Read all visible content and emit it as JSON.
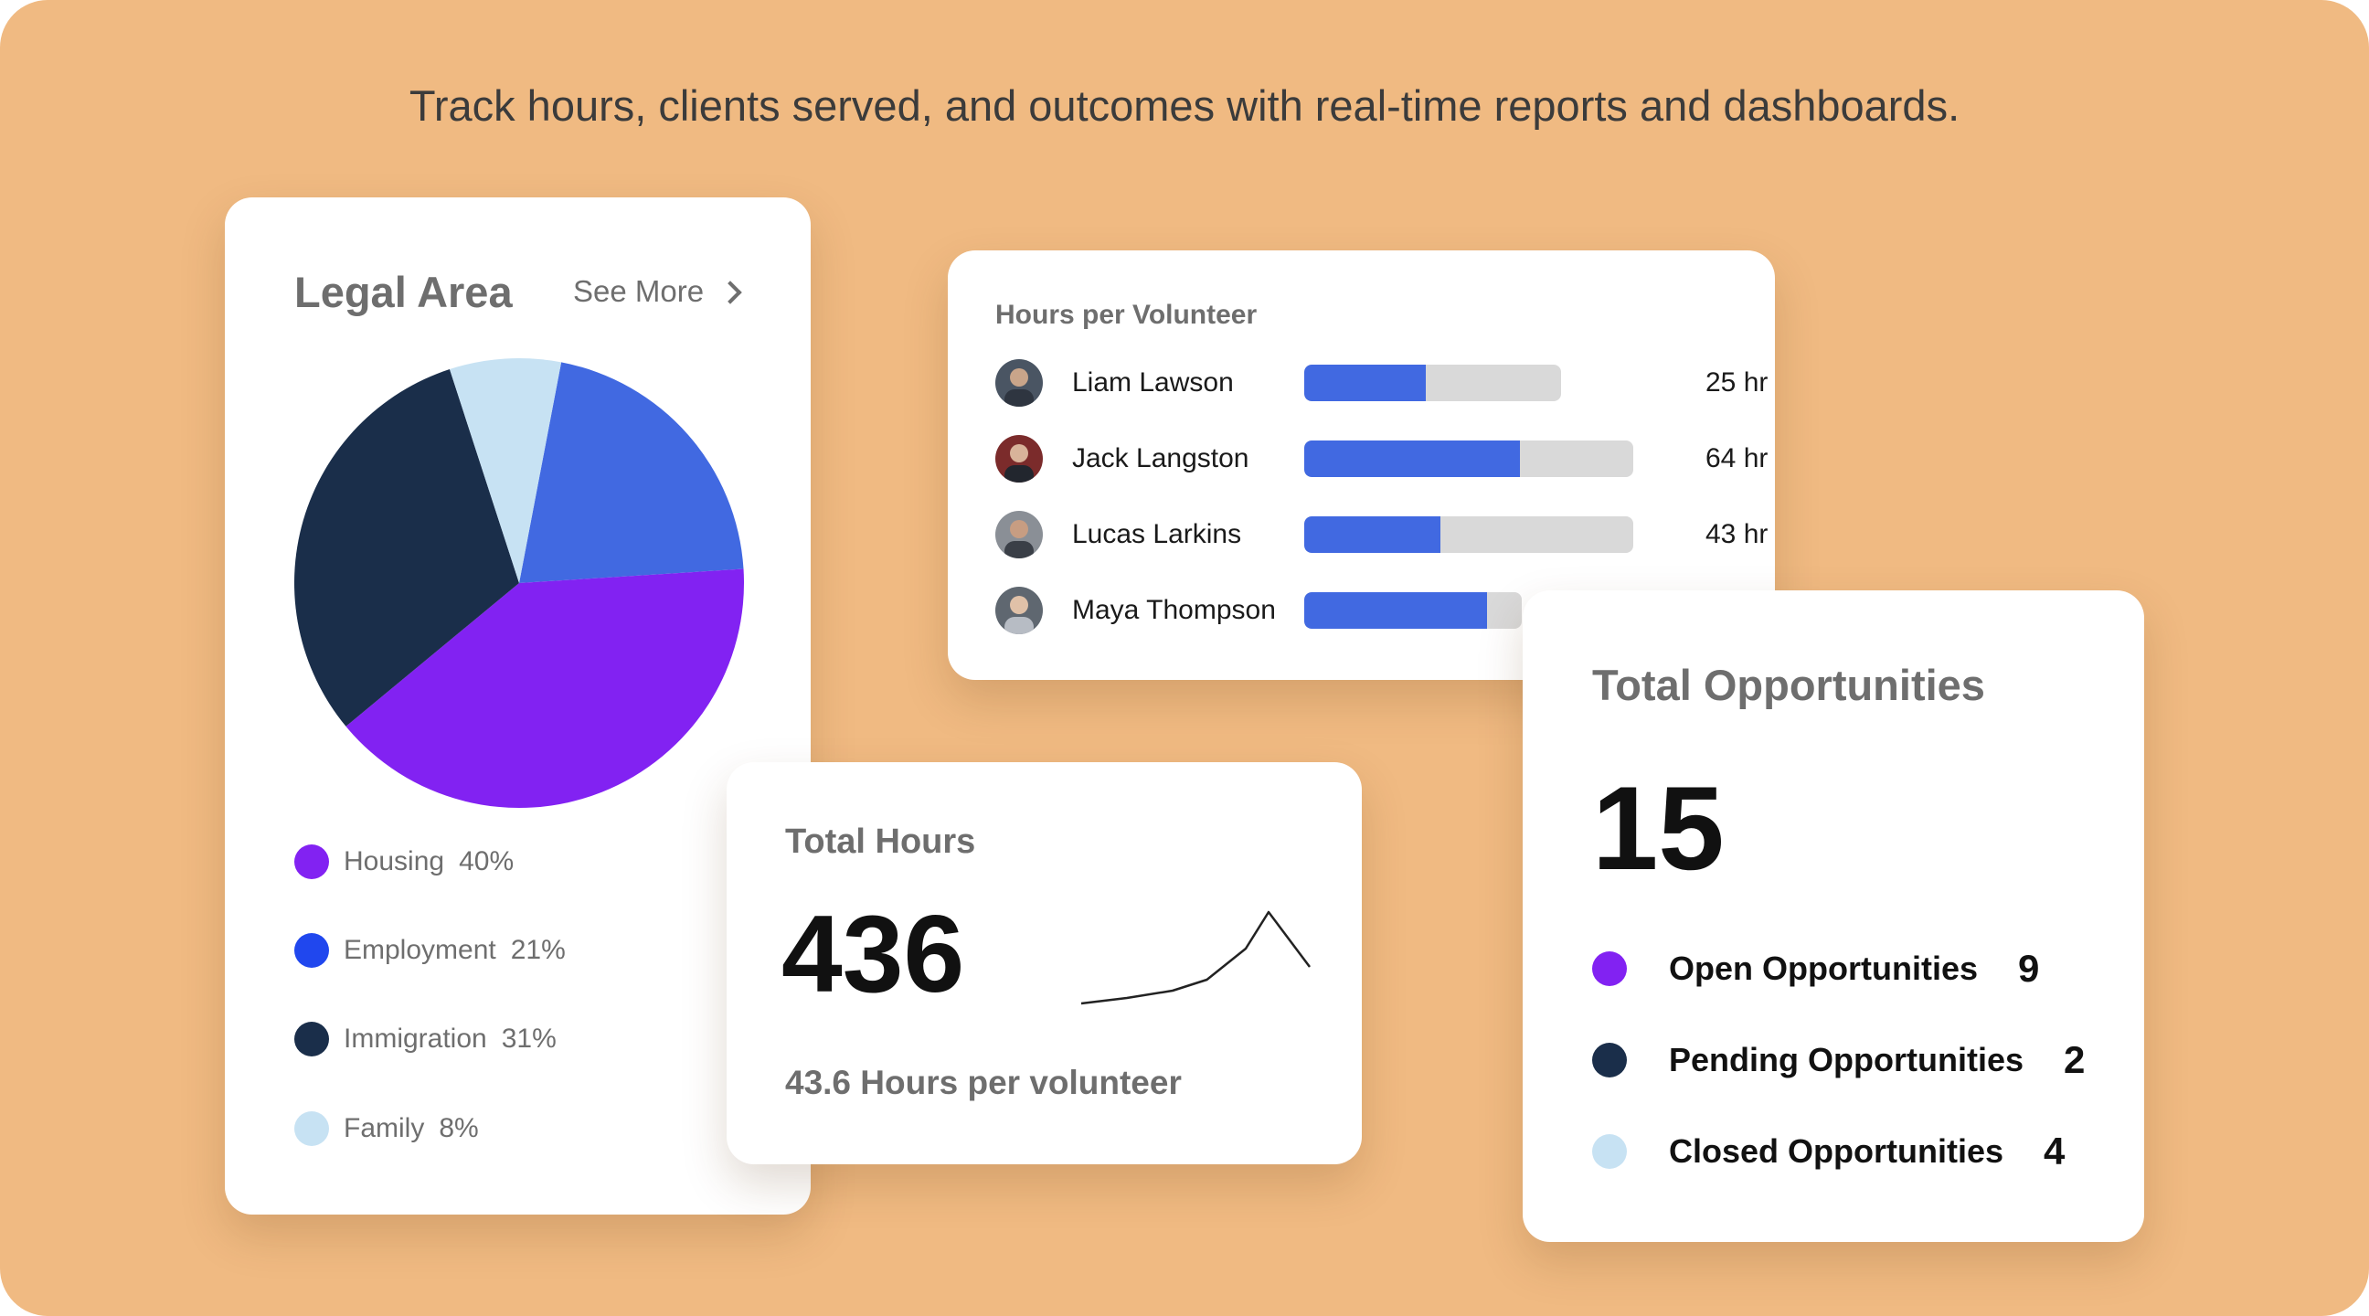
{
  "headline": "Track hours, clients served, and outcomes with real-time reports and dashboards.",
  "legal_area": {
    "title": "Legal Area",
    "see_more_label": "See More",
    "legend": [
      {
        "label": "Housing",
        "value": "40%",
        "color": "#8222F2"
      },
      {
        "label": "Employment",
        "value": "21%",
        "color": "#2047EE"
      },
      {
        "label": "Immigration",
        "value": "31%",
        "color": "#1A2E4A"
      },
      {
        "label": "Family",
        "value": "8%",
        "color": "#C7E2F3"
      }
    ]
  },
  "hours_per_volunteer": {
    "title": "Hours per Volunteer",
    "rows": [
      {
        "name": "Liam Lawson",
        "hours": "25 hr",
        "fill": 0.37,
        "track": 0.78
      },
      {
        "name": "Jack Langston",
        "hours": "64 hr",
        "fill": 0.655,
        "track": 1.0
      },
      {
        "name": "Lucas Larkins",
        "hours": "43 hr",
        "fill": 0.415,
        "track": 1.0
      },
      {
        "name": "Maya Thompson",
        "hours": "",
        "fill": 0.555,
        "track": 0.66
      }
    ]
  },
  "total_hours": {
    "title": "Total Hours",
    "value": "436",
    "subtitle": "43.6 Hours per volunteer"
  },
  "total_opportunities": {
    "title": "Total Opportunities",
    "value": "15",
    "items": [
      {
        "label": "Open Opportunities",
        "value": "9",
        "color": "#8222F2"
      },
      {
        "label": "Pending Opportunities",
        "value": "2",
        "color": "#1A2E4A"
      },
      {
        "label": "Closed Opportunities",
        "value": "4",
        "color": "#C7E2F3"
      }
    ]
  },
  "chart_data": [
    {
      "type": "pie",
      "title": "Legal Area",
      "categories": [
        "Housing",
        "Employment",
        "Immigration",
        "Family"
      ],
      "values": [
        40,
        21,
        31,
        8
      ],
      "colors": [
        "#8222F2",
        "#4169E1",
        "#1A2E4A",
        "#C7E2F3"
      ]
    },
    {
      "type": "bar",
      "title": "Hours per Volunteer",
      "categories": [
        "Liam Lawson",
        "Jack Langston",
        "Lucas Larkins",
        "Maya Thompson"
      ],
      "values": [
        25,
        64,
        43,
        null
      ],
      "units": "hr"
    },
    {
      "type": "line",
      "title": "Total Hours",
      "x": [
        0,
        1,
        2,
        3,
        4,
        5,
        6
      ],
      "y": [
        0,
        6,
        14,
        26,
        60,
        100,
        40
      ]
    }
  ]
}
